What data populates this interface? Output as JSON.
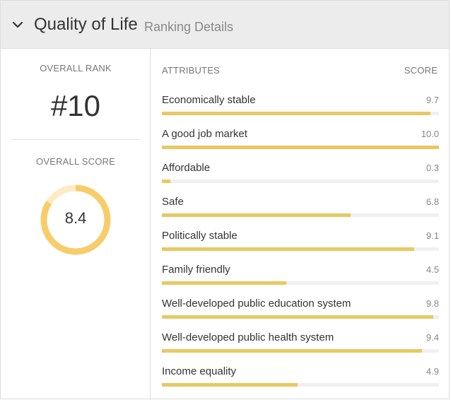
{
  "header": {
    "title": "Quality of Life",
    "subtitle": "Ranking Details",
    "icon": "chevron-down-icon"
  },
  "overall": {
    "rank_label": "OVERALL RANK",
    "rank": "#10",
    "score_label": "OVERALL SCORE",
    "score": "8.4",
    "score_fraction": 0.84
  },
  "table": {
    "attributes_header": "ATTRIBUTES",
    "score_header": "SCORE",
    "items": [
      {
        "label": "Economically stable",
        "score": "9.7",
        "value": 9.7
      },
      {
        "label": "A good job market",
        "score": "10.0",
        "value": 10.0
      },
      {
        "label": "Affordable",
        "score": "0.3",
        "value": 0.3
      },
      {
        "label": "Safe",
        "score": "6.8",
        "value": 6.8
      },
      {
        "label": "Politically stable",
        "score": "9.1",
        "value": 9.1
      },
      {
        "label": "Family friendly",
        "score": "4.5",
        "value": 4.5
      },
      {
        "label": "Well-developed public education system",
        "score": "9.8",
        "value": 9.8
      },
      {
        "label": "Well-developed public health system",
        "score": "9.4",
        "value": 9.4
      },
      {
        "label": "Income equality",
        "score": "4.9",
        "value": 4.9
      }
    ]
  },
  "colors": {
    "bar_fill": "#e8c862",
    "ring_fill": "#f7cd6b",
    "ring_track": "#fdebc4",
    "track": "#f0f0f0"
  }
}
